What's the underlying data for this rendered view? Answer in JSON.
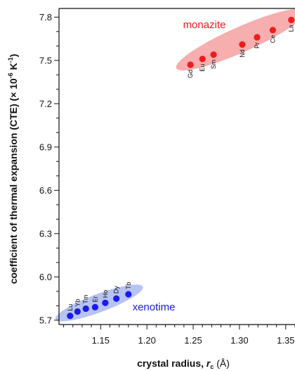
{
  "chart_data": {
    "type": "scatter",
    "xlabel": "crystal radius, ",
    "xlabel_var": "r",
    "xlabel_sub": "c",
    "xlabel_unit": " (Å)",
    "ylabel": "coefficient of thermal expansion (CTE) (× 10",
    "ylabel_sup": "-6",
    "ylabel_unit": " K",
    "ylabel_unit_sup": "-1",
    "ylabel_close": ")",
    "xlim": [
      1.105,
      1.36
    ],
    "ylim": [
      5.67,
      7.86
    ],
    "x_ticks": [
      "1.15",
      "1.20",
      "1.25",
      "1.30",
      "1.35"
    ],
    "x_tick_values": [
      1.15,
      1.2,
      1.25,
      1.3,
      1.35
    ],
    "y_ticks": [
      "5.7",
      "6.0",
      "6.3",
      "6.6",
      "6.9",
      "7.2",
      "7.5",
      "7.8"
    ],
    "y_tick_values": [
      5.7,
      6.0,
      6.3,
      6.6,
      6.9,
      7.2,
      7.5,
      7.8
    ],
    "groups": [
      {
        "label": "monazite",
        "color": "#ee1c1c",
        "fill": "#f5a0a0",
        "points": [
          {
            "label": "Gd",
            "x": 1.247,
            "y": 7.47
          },
          {
            "label": "Eu",
            "x": 1.26,
            "y": 7.51
          },
          {
            "label": "Sm",
            "x": 1.272,
            "y": 7.54
          },
          {
            "label": "Nd",
            "x": 1.303,
            "y": 7.61
          },
          {
            "label": "Pr",
            "x": 1.319,
            "y": 7.66
          },
          {
            "label": "Ce",
            "x": 1.336,
            "y": 7.71
          },
          {
            "label": "La",
            "x": 1.356,
            "y": 7.78
          }
        ]
      },
      {
        "label": "xenotime",
        "color": "#1a1aee",
        "fill": "#aab9ee",
        "points": [
          {
            "label": "Lu",
            "x": 1.117,
            "y": 5.73
          },
          {
            "label": "Yb",
            "x": 1.125,
            "y": 5.76
          },
          {
            "label": "Tm",
            "x": 1.134,
            "y": 5.78
          },
          {
            "label": "Er",
            "x": 1.144,
            "y": 5.79
          },
          {
            "label": "Ho",
            "x": 1.155,
            "y": 5.82
          },
          {
            "label": "Dy",
            "x": 1.167,
            "y": 5.85
          },
          {
            "label": "Tb",
            "x": 1.18,
            "y": 5.88
          }
        ]
      }
    ],
    "grid": false,
    "legend": "none"
  }
}
